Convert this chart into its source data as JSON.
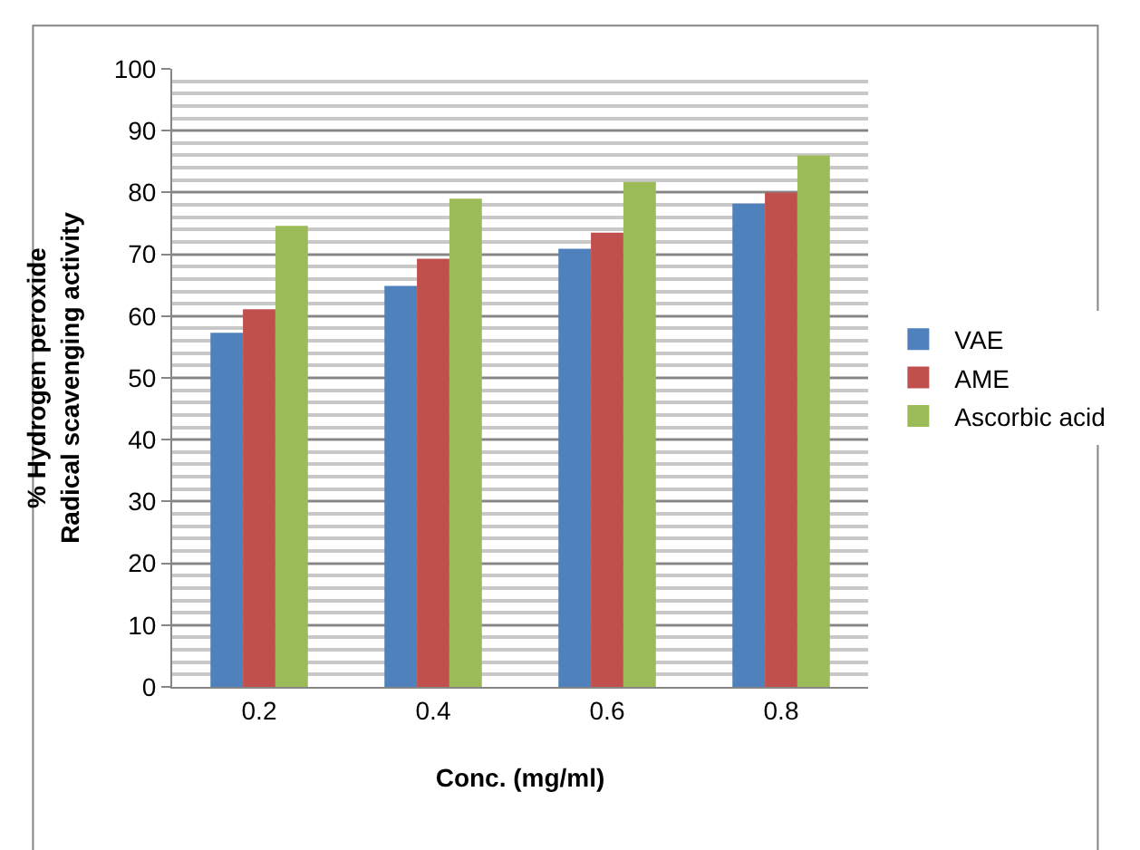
{
  "chart_data": {
    "type": "bar",
    "xlabel": "Conc. (mg/ml)",
    "ylabel": "% Hydrogen peroxide Radical scavenging activity",
    "categories": [
      "0.2",
      "0.4",
      "0.6",
      "0.8"
    ],
    "series": [
      {
        "name": "VAE",
        "color": "#4f81bd",
        "values": [
          57.3,
          64.9,
          70.9,
          78.2
        ]
      },
      {
        "name": "AME",
        "color": "#c0504d",
        "values": [
          61.1,
          69.3,
          73.5,
          80.0
        ]
      },
      {
        "name": "Ascorbic acid",
        "color": "#9bbb59",
        "values": [
          74.6,
          79.0,
          81.7,
          86.0
        ]
      }
    ],
    "ylim": [
      0,
      100
    ],
    "yticks": [
      0,
      10,
      20,
      30,
      40,
      50,
      60,
      70,
      80,
      90,
      100
    ],
    "grid": "y",
    "legend": "right"
  }
}
